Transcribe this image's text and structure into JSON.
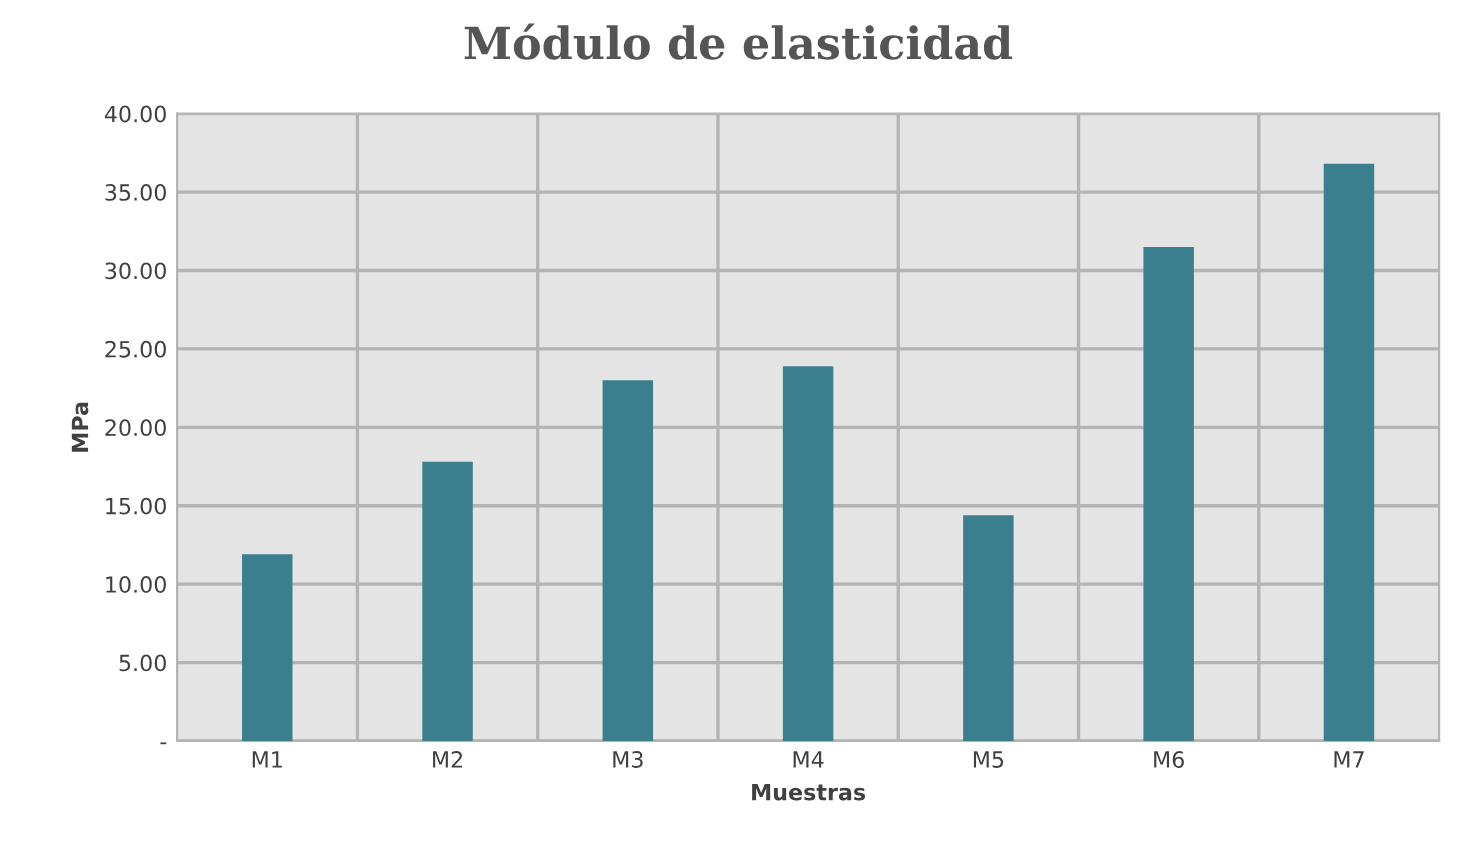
{
  "chart_data": {
    "type": "bar",
    "title": "Módulo de elasticidad",
    "xlabel": "Muestras",
    "ylabel": "MPa",
    "categories": [
      "M1",
      "M2",
      "M3",
      "M4",
      "M5",
      "M6",
      "M7"
    ],
    "values": [
      11.9,
      17.8,
      23.0,
      23.9,
      14.4,
      31.5,
      36.8
    ],
    "color": "#3b7f8e",
    "ylim": [
      0,
      40
    ],
    "yticks": [
      {
        "value": 0,
        "label": "-"
      },
      {
        "value": 5,
        "label": "5.00"
      },
      {
        "value": 10,
        "label": "10.00"
      },
      {
        "value": 15,
        "label": "15.00"
      },
      {
        "value": 20,
        "label": "20.00"
      },
      {
        "value": 25,
        "label": "25.00"
      },
      {
        "value": 30,
        "label": "30.00"
      },
      {
        "value": 35,
        "label": "35.00"
      },
      {
        "value": 40,
        "label": "40.00"
      }
    ],
    "grid": true
  }
}
